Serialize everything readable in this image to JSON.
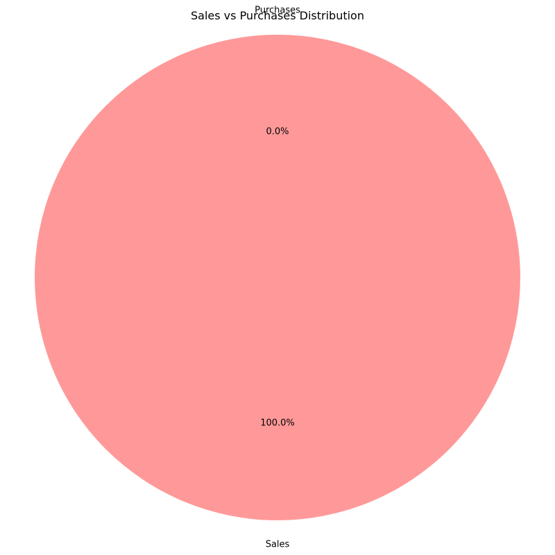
{
  "chart_data": {
    "type": "pie",
    "title": "Sales vs Purchases Distribution",
    "slices": [
      {
        "label": "Sales",
        "value": 100.0,
        "percent_label": "100.0%",
        "color": "#ff9999"
      },
      {
        "label": "Purchases",
        "value": 0.0,
        "percent_label": "0.0%",
        "color": "#66b3ff"
      }
    ],
    "start_angle_deg": 90,
    "legend": "none"
  }
}
